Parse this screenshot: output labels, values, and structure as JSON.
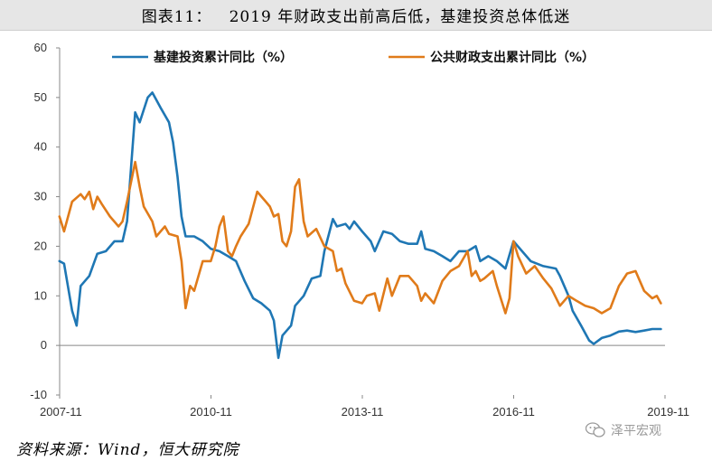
{
  "title": "图表11：   2019 年财政支出前高后低，基建投资总体低迷",
  "source": "资料来源：Wind，恒大研究院",
  "watermark": "泽平宏观",
  "chart_data": {
    "type": "line",
    "yticks": [
      60,
      50,
      40,
      30,
      20,
      10,
      0,
      -10
    ],
    "ylim": [
      -10,
      60
    ],
    "xlim": [
      2007.833,
      2019.833
    ],
    "xtick_labels": [
      "2007-11",
      "2010-11",
      "2013-11",
      "2016-11",
      "2019-11"
    ],
    "xtick_positions": [
      2007.833,
      2010.833,
      2013.833,
      2016.833,
      2019.833
    ],
    "grid": false,
    "legend_position": "top",
    "series": [
      {
        "name": "基建投资累计同比（%）",
        "color": "#1f77b4",
        "points": [
          [
            2007.83,
            17
          ],
          [
            2007.92,
            16.5
          ],
          [
            2008.08,
            7
          ],
          [
            2008.17,
            4
          ],
          [
            2008.25,
            12
          ],
          [
            2008.42,
            14
          ],
          [
            2008.58,
            18.5
          ],
          [
            2008.75,
            19
          ],
          [
            2008.92,
            21
          ],
          [
            2009.08,
            21
          ],
          [
            2009.17,
            25
          ],
          [
            2009.25,
            36
          ],
          [
            2009.33,
            47
          ],
          [
            2009.42,
            45
          ],
          [
            2009.58,
            50
          ],
          [
            2009.67,
            51
          ],
          [
            2009.83,
            48
          ],
          [
            2010.0,
            45
          ],
          [
            2010.08,
            41
          ],
          [
            2010.17,
            34
          ],
          [
            2010.25,
            26
          ],
          [
            2010.33,
            22
          ],
          [
            2010.5,
            22
          ],
          [
            2010.67,
            21
          ],
          [
            2010.83,
            19.5
          ],
          [
            2011.0,
            19
          ],
          [
            2011.17,
            18
          ],
          [
            2011.33,
            17
          ],
          [
            2011.5,
            13
          ],
          [
            2011.67,
            9.5
          ],
          [
            2011.83,
            8.5
          ],
          [
            2012.0,
            7
          ],
          [
            2012.08,
            5
          ],
          [
            2012.17,
            -2.5
          ],
          [
            2012.25,
            2
          ],
          [
            2012.42,
            4
          ],
          [
            2012.5,
            8
          ],
          [
            2012.67,
            10
          ],
          [
            2012.83,
            13.5
          ],
          [
            2013.0,
            14
          ],
          [
            2013.08,
            19
          ],
          [
            2013.25,
            25.5
          ],
          [
            2013.33,
            24
          ],
          [
            2013.5,
            24.5
          ],
          [
            2013.58,
            23.5
          ],
          [
            2013.67,
            25
          ],
          [
            2013.83,
            23
          ],
          [
            2014.0,
            21
          ],
          [
            2014.08,
            19
          ],
          [
            2014.25,
            23
          ],
          [
            2014.42,
            22.5
          ],
          [
            2014.58,
            21
          ],
          [
            2014.75,
            20.5
          ],
          [
            2014.92,
            20.5
          ],
          [
            2015.0,
            23
          ],
          [
            2015.08,
            19.5
          ],
          [
            2015.25,
            19
          ],
          [
            2015.42,
            18
          ],
          [
            2015.58,
            17
          ],
          [
            2015.75,
            19
          ],
          [
            2015.92,
            19
          ],
          [
            2016.08,
            20
          ],
          [
            2016.17,
            17
          ],
          [
            2016.33,
            18
          ],
          [
            2016.5,
            17
          ],
          [
            2016.67,
            15.5
          ],
          [
            2016.83,
            21
          ],
          [
            2017.0,
            19
          ],
          [
            2017.17,
            17
          ],
          [
            2017.42,
            16
          ],
          [
            2017.67,
            15.5
          ],
          [
            2017.75,
            14
          ],
          [
            2017.92,
            10
          ],
          [
            2018.0,
            7
          ],
          [
            2018.17,
            4
          ],
          [
            2018.33,
            1
          ],
          [
            2018.42,
            0.3
          ],
          [
            2018.58,
            1.5
          ],
          [
            2018.75,
            2
          ],
          [
            2018.92,
            2.8
          ],
          [
            2019.08,
            3
          ],
          [
            2019.25,
            2.7
          ],
          [
            2019.42,
            3
          ],
          [
            2019.58,
            3.3
          ],
          [
            2019.75,
            3.3
          ]
        ]
      },
      {
        "name": "公共财政支出累计同比（%）",
        "color": "#e07b1a",
        "points": [
          [
            2007.83,
            26
          ],
          [
            2007.92,
            23
          ],
          [
            2008.08,
            29
          ],
          [
            2008.25,
            30.5
          ],
          [
            2008.33,
            29.5
          ],
          [
            2008.42,
            31
          ],
          [
            2008.5,
            27.5
          ],
          [
            2008.58,
            30
          ],
          [
            2008.67,
            28.5
          ],
          [
            2008.83,
            26
          ],
          [
            2009.0,
            24
          ],
          [
            2009.08,
            25
          ],
          [
            2009.17,
            29
          ],
          [
            2009.25,
            33
          ],
          [
            2009.33,
            37
          ],
          [
            2009.42,
            32
          ],
          [
            2009.5,
            28
          ],
          [
            2009.67,
            25
          ],
          [
            2009.75,
            22
          ],
          [
            2009.92,
            24
          ],
          [
            2010.0,
            22.5
          ],
          [
            2010.17,
            22
          ],
          [
            2010.25,
            17
          ],
          [
            2010.33,
            7.5
          ],
          [
            2010.42,
            12
          ],
          [
            2010.5,
            11
          ],
          [
            2010.67,
            17
          ],
          [
            2010.83,
            17
          ],
          [
            2010.92,
            20
          ],
          [
            2011.0,
            24
          ],
          [
            2011.08,
            26
          ],
          [
            2011.17,
            19
          ],
          [
            2011.25,
            18
          ],
          [
            2011.33,
            20
          ],
          [
            2011.42,
            22
          ],
          [
            2011.58,
            24.5
          ],
          [
            2011.75,
            31
          ],
          [
            2011.92,
            29
          ],
          [
            2012.0,
            28
          ],
          [
            2012.08,
            26
          ],
          [
            2012.17,
            26.5
          ],
          [
            2012.25,
            21
          ],
          [
            2012.33,
            20
          ],
          [
            2012.42,
            23
          ],
          [
            2012.5,
            32
          ],
          [
            2012.58,
            33.5
          ],
          [
            2012.67,
            25
          ],
          [
            2012.75,
            22
          ],
          [
            2012.92,
            23.5
          ],
          [
            2013.08,
            20
          ],
          [
            2013.25,
            19
          ],
          [
            2013.33,
            15
          ],
          [
            2013.42,
            15.5
          ],
          [
            2013.5,
            12.5
          ],
          [
            2013.67,
            9
          ],
          [
            2013.83,
            8.5
          ],
          [
            2013.92,
            10
          ],
          [
            2014.08,
            10.5
          ],
          [
            2014.17,
            7
          ],
          [
            2014.33,
            13.5
          ],
          [
            2014.42,
            10
          ],
          [
            2014.58,
            14
          ],
          [
            2014.75,
            14
          ],
          [
            2014.92,
            12
          ],
          [
            2015.0,
            9
          ],
          [
            2015.08,
            10.5
          ],
          [
            2015.25,
            8.5
          ],
          [
            2015.42,
            13
          ],
          [
            2015.58,
            15
          ],
          [
            2015.75,
            16
          ],
          [
            2015.92,
            19
          ],
          [
            2016.0,
            14
          ],
          [
            2016.08,
            15
          ],
          [
            2016.17,
            13
          ],
          [
            2016.25,
            13.5
          ],
          [
            2016.42,
            15
          ],
          [
            2016.5,
            12
          ],
          [
            2016.67,
            6.5
          ],
          [
            2016.75,
            9.5
          ],
          [
            2016.83,
            21
          ],
          [
            2016.92,
            18
          ],
          [
            2017.08,
            14.5
          ],
          [
            2017.25,
            16
          ],
          [
            2017.42,
            13.5
          ],
          [
            2017.58,
            11.5
          ],
          [
            2017.75,
            8
          ],
          [
            2017.92,
            10
          ],
          [
            2018.08,
            9
          ],
          [
            2018.25,
            8
          ],
          [
            2018.42,
            7.5
          ],
          [
            2018.58,
            6.5
          ],
          [
            2018.75,
            7.5
          ],
          [
            2018.92,
            12
          ],
          [
            2019.08,
            14.5
          ],
          [
            2019.25,
            15
          ],
          [
            2019.42,
            11
          ],
          [
            2019.58,
            9.5
          ],
          [
            2019.67,
            10
          ],
          [
            2019.75,
            8.5
          ]
        ]
      }
    ]
  }
}
